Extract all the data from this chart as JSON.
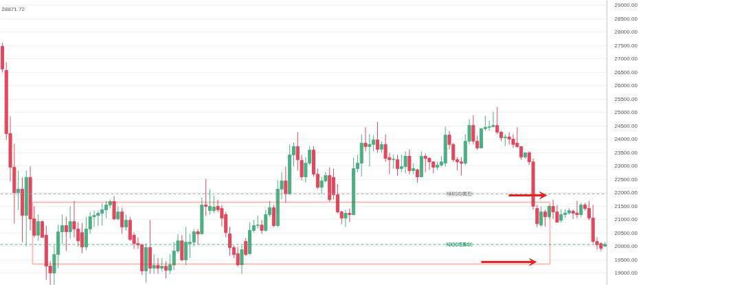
{
  "chart_data": {
    "type": "candlestick",
    "categories": [
      null,
      null,
      null,
      null,
      null,
      null,
      null,
      null,
      null,
      null,
      null,
      null,
      null,
      null,
      null,
      null,
      null,
      null,
      null,
      null,
      null,
      null,
      null,
      null,
      null,
      null,
      null,
      null,
      null,
      null,
      null,
      null,
      null,
      null,
      null,
      null,
      null,
      null,
      null,
      null,
      null,
      null,
      null,
      null,
      null,
      null,
      null,
      null,
      null,
      null,
      null,
      null,
      null,
      null,
      null,
      null,
      null,
      null,
      null,
      null,
      null,
      null,
      null,
      null,
      null,
      null,
      null,
      null,
      null,
      null,
      null,
      null,
      null,
      null,
      null,
      null,
      null,
      null,
      null,
      null,
      null,
      null,
      null,
      null,
      null,
      null,
      null,
      null,
      null,
      null,
      null,
      null,
      null,
      null,
      null,
      null,
      null,
      null,
      null,
      null,
      null,
      null,
      null,
      null,
      null,
      null,
      null,
      null,
      null,
      null,
      null,
      null,
      null,
      null,
      null,
      null,
      null,
      null,
      null,
      null,
      null,
      null,
      null,
      null,
      null,
      null,
      null,
      null,
      null,
      null,
      null,
      null,
      null,
      null,
      null,
      null,
      null,
      null,
      null,
      null,
      null,
      null,
      null,
      null,
      null,
      null,
      null,
      null,
      null,
      null,
      null,
      null
    ],
    "ohlc": [
      [
        27462,
        27600,
        26500,
        26615
      ],
      [
        26564,
        26871,
        23974,
        24205
      ],
      [
        24205,
        24846,
        22410,
        22948
      ],
      [
        22948,
        23820,
        20846,
        22000
      ],
      [
        22000,
        22820,
        21360,
        22130
      ],
      [
        22130,
        22570,
        20150,
        21150
      ],
      [
        21150,
        22820,
        20000,
        22570
      ],
      [
        22570,
        22980,
        20590,
        21020
      ],
      [
        21020,
        21490,
        20330,
        20410
      ],
      [
        20410,
        21180,
        20200,
        20920
      ],
      [
        20920,
        20950,
        20330,
        20330
      ],
      [
        20410,
        20770,
        18740,
        19260
      ],
      [
        19260,
        19440,
        18560,
        19000
      ],
      [
        19000,
        20030,
        18560,
        19690
      ],
      [
        19690,
        20800,
        19180,
        20540
      ],
      [
        20540,
        21180,
        20080,
        20770
      ],
      [
        20770,
        21100,
        19820,
        20540
      ],
      [
        20540,
        21490,
        20280,
        20920
      ],
      [
        20920,
        21690,
        20330,
        20640
      ],
      [
        20640,
        20900,
        20000,
        20200
      ],
      [
        20510,
        20870,
        19740,
        19970
      ],
      [
        19970,
        21100,
        19850,
        20640
      ],
      [
        20640,
        21280,
        20460,
        21100
      ],
      [
        21100,
        21330,
        20720,
        21150
      ],
      [
        21150,
        21330,
        20770,
        21230
      ],
      [
        21230,
        21590,
        20770,
        21360
      ],
      [
        21360,
        21700,
        21050,
        21540
      ],
      [
        21540,
        21750,
        21410,
        21670
      ],
      [
        21670,
        21870,
        20970,
        21020
      ],
      [
        21020,
        21490,
        20970,
        21280
      ],
      [
        21280,
        21440,
        20460,
        20720
      ],
      [
        20720,
        21180,
        20590,
        20970
      ],
      [
        20970,
        21100,
        20200,
        20250
      ],
      [
        20410,
        20510,
        19900,
        20100
      ],
      [
        20100,
        20330,
        19900,
        20050
      ],
      [
        20050,
        20100,
        18920,
        19080
      ],
      [
        19080,
        20100,
        18640,
        19950
      ],
      [
        19950,
        20970,
        18970,
        19180
      ],
      [
        19180,
        19700,
        18970,
        19280
      ],
      [
        19280,
        19560,
        18970,
        19180
      ],
      [
        19180,
        19560,
        19050,
        19250
      ],
      [
        19250,
        19440,
        18800,
        19100
      ],
      [
        19100,
        19700,
        18970,
        19300
      ],
      [
        19300,
        20150,
        19120,
        19820
      ],
      [
        19820,
        20460,
        19740,
        20200
      ],
      [
        20200,
        20410,
        19440,
        19490
      ],
      [
        19490,
        20720,
        19300,
        20150
      ],
      [
        20100,
        20460,
        19570,
        20150
      ],
      [
        20150,
        20640,
        20000,
        20540
      ],
      [
        20540,
        20640,
        20050,
        20460
      ],
      [
        20460,
        21820,
        20460,
        21540
      ],
      [
        21540,
        22510,
        21130,
        21490
      ],
      [
        21330,
        22130,
        21180,
        21490
      ],
      [
        21330,
        21900,
        21230,
        21460
      ],
      [
        21490,
        21740,
        21280,
        21360
      ],
      [
        21410,
        21540,
        20740,
        21050
      ],
      [
        21180,
        21280,
        20330,
        20510
      ],
      [
        20460,
        20720,
        19640,
        19950
      ],
      [
        19950,
        20030,
        19560,
        19690
      ],
      [
        19720,
        19980,
        19230,
        19310
      ],
      [
        19310,
        20030,
        18970,
        19870
      ],
      [
        20180,
        20300,
        19640,
        19690
      ],
      [
        19720,
        20900,
        19690,
        20590
      ],
      [
        20590,
        20970,
        20510,
        20770
      ],
      [
        20770,
        21150,
        20660,
        20790
      ],
      [
        20790,
        20970,
        20460,
        20590
      ],
      [
        20590,
        21360,
        20540,
        21180
      ],
      [
        21180,
        21690,
        21100,
        21440
      ],
      [
        21440,
        21540,
        20720,
        20770
      ],
      [
        20770,
        22460,
        20720,
        22130
      ],
      [
        22130,
        22770,
        21750,
        22440
      ],
      [
        22440,
        22970,
        21620,
        21950
      ],
      [
        21950,
        23800,
        21920,
        23410
      ],
      [
        23410,
        23870,
        22970,
        23720
      ],
      [
        23720,
        24260,
        22820,
        23230
      ],
      [
        23200,
        23410,
        22460,
        22590
      ],
      [
        22590,
        23330,
        22380,
        23100
      ],
      [
        23100,
        23740,
        23030,
        23590
      ],
      [
        23590,
        23740,
        22590,
        22690
      ],
      [
        22690,
        22900,
        22130,
        22200
      ],
      [
        22200,
        22590,
        21950,
        22440
      ],
      [
        22440,
        22770,
        22380,
        22640
      ],
      [
        22640,
        22950,
        21670,
        21740
      ],
      [
        22570,
        22900,
        21740,
        21920
      ],
      [
        21920,
        22330,
        21230,
        21280
      ],
      [
        21280,
        21330,
        20820,
        21050
      ],
      [
        21050,
        21360,
        20720,
        21230
      ],
      [
        21230,
        21410,
        20900,
        21180
      ],
      [
        21180,
        23310,
        21150,
        22900
      ],
      [
        22900,
        23410,
        22770,
        23100
      ],
      [
        23100,
        24180,
        22610,
        23850
      ],
      [
        23850,
        24440,
        23540,
        23720
      ],
      [
        23720,
        24180,
        22970,
        23800
      ],
      [
        23800,
        24150,
        23540,
        23970
      ],
      [
        23970,
        24640,
        23490,
        23620
      ],
      [
        23620,
        23920,
        23490,
        23800
      ],
      [
        23800,
        24180,
        23150,
        23280
      ],
      [
        23310,
        23490,
        22690,
        23230
      ],
      [
        23230,
        23410,
        22900,
        23250
      ],
      [
        23230,
        23410,
        22640,
        22900
      ],
      [
        22900,
        23410,
        22770,
        22970
      ],
      [
        22970,
        23540,
        22720,
        23360
      ],
      [
        23360,
        23620,
        22690,
        22820
      ],
      [
        22820,
        23100,
        22690,
        22900
      ],
      [
        22850,
        22900,
        22360,
        22590
      ],
      [
        22590,
        23540,
        22590,
        23360
      ],
      [
        23360,
        23460,
        22770,
        23280
      ],
      [
        23280,
        23330,
        22850,
        23150
      ],
      [
        23150,
        23150,
        22720,
        22950
      ],
      [
        22950,
        23150,
        22850,
        23030
      ],
      [
        23030,
        23360,
        22970,
        23150
      ],
      [
        23100,
        24460,
        22970,
        24150
      ],
      [
        24150,
        24300,
        23620,
        23800
      ],
      [
        23800,
        23850,
        23150,
        23230
      ],
      [
        23230,
        23330,
        22820,
        23150
      ],
      [
        23150,
        23330,
        22640,
        23100
      ],
      [
        23100,
        24180,
        23030,
        23920
      ],
      [
        23920,
        24740,
        23800,
        24510
      ],
      [
        24510,
        24900,
        23800,
        23920
      ],
      [
        23920,
        24130,
        23590,
        23670
      ],
      [
        23670,
        24390,
        23670,
        24390
      ],
      [
        24390,
        24870,
        24310,
        24440
      ],
      [
        24440,
        24690,
        24310,
        24460
      ],
      [
        24460,
        25020,
        24440,
        24510
      ],
      [
        24510,
        25200,
        24180,
        24260
      ],
      [
        24260,
        24310,
        23920,
        24050
      ],
      [
        24050,
        24180,
        23740,
        24080
      ],
      [
        24080,
        24260,
        23800,
        24000
      ],
      [
        24000,
        24180,
        23670,
        23800
      ],
      [
        23850,
        24440,
        23670,
        23720
      ],
      [
        23720,
        23720,
        23230,
        23330
      ],
      [
        23330,
        23490,
        23280,
        23490
      ],
      [
        23490,
        23540,
        23030,
        23150
      ],
      [
        23150,
        23280,
        21360,
        21490
      ],
      [
        21410,
        21540,
        20720,
        20840
      ],
      [
        20790,
        21490,
        20720,
        21280
      ],
      [
        21280,
        21360,
        20740,
        21100
      ],
      [
        21100,
        21540,
        21020,
        21490
      ],
      [
        21490,
        21740,
        21020,
        21280
      ],
      [
        21280,
        21540,
        20890,
        20900
      ],
      [
        20970,
        21380,
        20890,
        21180
      ],
      [
        21180,
        21380,
        21050,
        21240
      ],
      [
        21240,
        21430,
        21180,
        21330
      ],
      [
        21310,
        21380,
        21020,
        21230
      ],
      [
        21240,
        21690,
        21050,
        21180
      ],
      [
        21180,
        21620,
        21100,
        21540
      ],
      [
        21540,
        21620,
        21330,
        21410
      ],
      [
        21410,
        21690,
        20970,
        21050
      ],
      [
        21050,
        21540,
        20100,
        20180
      ],
      [
        20180,
        20330,
        19870,
        20050
      ],
      [
        20100,
        20150,
        19820,
        19920
      ],
      [
        20000,
        20150,
        19980,
        20064.59
      ]
    ],
    "colors": [
      "#e0485e",
      "#e0485e",
      "#e0485e",
      "#e0485e",
      "#4caf84",
      "#e0485e",
      "#4caf84",
      "#e0485e",
      "#e0485e",
      "#4caf84",
      "#e0485e",
      "#e0485e",
      "#e0485e",
      "#4caf84",
      "#4caf84",
      "#4caf84",
      "#e0485e",
      "#4caf84",
      "#e0485e",
      "#e0485e",
      "#e0485e",
      "#4caf84",
      "#4caf84",
      "#4caf84",
      "#4caf84",
      "#4caf84",
      "#4caf84",
      "#4caf84",
      "#e0485e",
      "#4caf84",
      "#e0485e",
      "#4caf84",
      "#e0485e",
      "#e0485e",
      "#e0485e",
      "#e0485e",
      "#4caf84",
      "#e0485e",
      "#4caf84",
      "#e0485e",
      "#4caf84",
      "#e0485e",
      "#4caf84",
      "#4caf84",
      "#4caf84",
      "#e0485e",
      "#4caf84",
      "#4caf84",
      "#4caf84",
      "#e0485e",
      "#4caf84",
      "#e0485e",
      "#4caf84",
      "#4caf84",
      "#e0485e",
      "#e0485e",
      "#e0485e",
      "#e0485e",
      "#e0485e",
      "#e0485e",
      "#4caf84",
      "#e0485e",
      "#4caf84",
      "#4caf84",
      "#4caf84",
      "#e0485e",
      "#4caf84",
      "#4caf84",
      "#e0485e",
      "#4caf84",
      "#4caf84",
      "#e0485e",
      "#4caf84",
      "#4caf84",
      "#e0485e",
      "#e0485e",
      "#4caf84",
      "#4caf84",
      "#e0485e",
      "#e0485e",
      "#4caf84",
      "#4caf84",
      "#e0485e",
      "#e0485e",
      "#e0485e",
      "#e0485e",
      "#4caf84",
      "#e0485e",
      "#4caf84",
      "#4caf84",
      "#4caf84",
      "#e0485e",
      "#4caf84",
      "#4caf84",
      "#e0485e",
      "#4caf84",
      "#e0485e",
      "#e0485e",
      "#4caf84",
      "#e0485e",
      "#4caf84",
      "#4caf84",
      "#e0485e",
      "#4caf84",
      "#e0485e",
      "#4caf84",
      "#e0485e",
      "#e0485e",
      "#e0485e",
      "#4caf84",
      "#4caf84",
      "#4caf84",
      "#e0485e",
      "#e0485e",
      "#e0485e",
      "#e0485e",
      "#4caf84",
      "#4caf84",
      "#e0485e",
      "#e0485e",
      "#4caf84",
      "#4caf84",
      "#4caf84",
      "#4caf84",
      "#e0485e",
      "#e0485e",
      "#4caf84",
      "#e0485e",
      "#e0485e",
      "#e0485e",
      "#e0485e",
      "#4caf84",
      "#e0485e",
      "#e0485e",
      "#e0485e",
      "#4caf84",
      "#e0485e",
      "#4caf84",
      "#e0485e",
      "#e0485e",
      "#4caf84",
      "#4caf84",
      "#4caf84",
      "#e0485e",
      "#e0485e",
      "#4caf84",
      "#e0485e",
      "#e0485e",
      "#e0485e",
      "#e0485e",
      "#e0485e",
      "#4caf84"
    ],
    "ylim": [
      18540,
      29180
    ],
    "yticks": [
      {
        "value": 19000,
        "label": "19000.00"
      },
      {
        "value": 19500,
        "label": "19500.00"
      },
      {
        "value": 20000,
        "label": "20000.00"
      },
      {
        "value": 20500,
        "label": "20500.00"
      },
      {
        "value": 21000,
        "label": "21000.00"
      },
      {
        "value": 21500,
        "label": "21500.00"
      },
      {
        "value": 22000,
        "label": "22000.00"
      },
      {
        "value": 22500,
        "label": "22500.00"
      },
      {
        "value": 23000,
        "label": "23000.00"
      },
      {
        "value": 23500,
        "label": "23500.00"
      },
      {
        "value": 24000,
        "label": "24000.00"
      },
      {
        "value": 24500,
        "label": "24500.00"
      },
      {
        "value": 25000,
        "label": "25000.00"
      },
      {
        "value": 25500,
        "label": "25500.00"
      },
      {
        "value": 26000,
        "label": "26000.00"
      },
      {
        "value": 26500,
        "label": "26500.00"
      },
      {
        "value": 27000,
        "label": "27000.00"
      },
      {
        "value": 27500,
        "label": "27500.00"
      },
      {
        "value": 28000,
        "label": "28000.00"
      },
      {
        "value": 28500,
        "label": "28500.00"
      },
      {
        "value": 29000,
        "label": "29000.00"
      }
    ],
    "ref_lines": [
      {
        "axis": "y",
        "value": 21956.44,
        "label": "21956.44",
        "color": "#9e9e9e",
        "line_style": "dashed"
      },
      {
        "axis": "y",
        "value": 20064.59,
        "label": "20064.59",
        "color": "#4caf84",
        "line_style": "dashed"
      }
    ],
    "annotations": [
      "28871.72"
    ],
    "grid": "y",
    "tick_labels": "y"
  }
}
